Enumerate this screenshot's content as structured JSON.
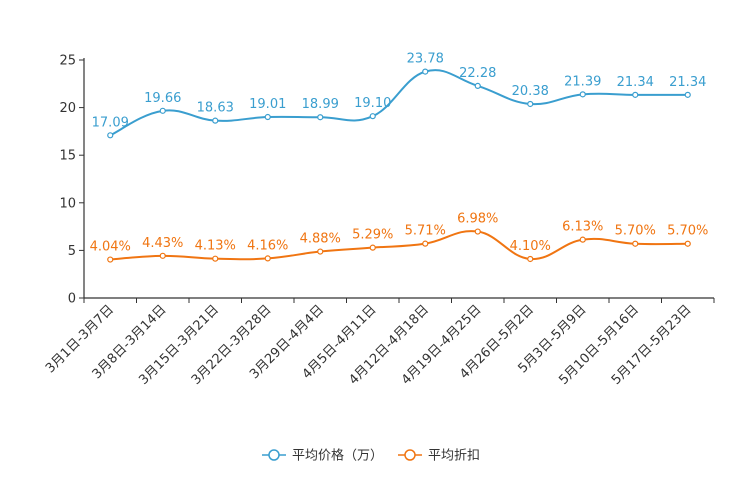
{
  "chart_data": {
    "type": "line",
    "title": "",
    "xlabel": "",
    "ylabel": "",
    "ylim": [
      0,
      25
    ],
    "yticks": [
      0,
      5,
      10,
      15,
      20,
      25
    ],
    "grid": false,
    "legend_position": "bottom-center",
    "categories": [
      "3月1日-3月7日",
      "3月8日-3月14日",
      "3月15日-3月21日",
      "3月22日-3月28日",
      "3月29日-4月4日",
      "4月5日-4月11日",
      "4月12日-4月18日",
      "4月19日-4月25日",
      "4月26日-5月2日",
      "5月3日-5月9日",
      "5月10日-5月16日",
      "5月17日-5月23日"
    ],
    "series": [
      {
        "name": "平均价格（万）",
        "color": "#3a9ecf",
        "values": [
          17.09,
          19.66,
          18.63,
          19.01,
          18.99,
          19.1,
          23.78,
          22.28,
          20.38,
          21.39,
          21.34,
          21.34
        ],
        "labels": [
          "17.09",
          "19.66",
          "18.63",
          "19.01",
          "18.99",
          "19.10",
          "23.78",
          "22.28",
          "20.38",
          "21.39",
          "21.34",
          "21.34"
        ]
      },
      {
        "name": "平均折扣",
        "color": "#f07512",
        "values": [
          4.04,
          4.43,
          4.13,
          4.16,
          4.88,
          5.29,
          5.71,
          6.98,
          4.1,
          6.13,
          5.7,
          5.7
        ],
        "labels": [
          "4.04%",
          "4.43%",
          "4.13%",
          "4.16%",
          "4.88%",
          "5.29%",
          "5.71%",
          "6.98%",
          "4.10%",
          "6.13%",
          "5.70%",
          "5.70%"
        ]
      }
    ]
  }
}
